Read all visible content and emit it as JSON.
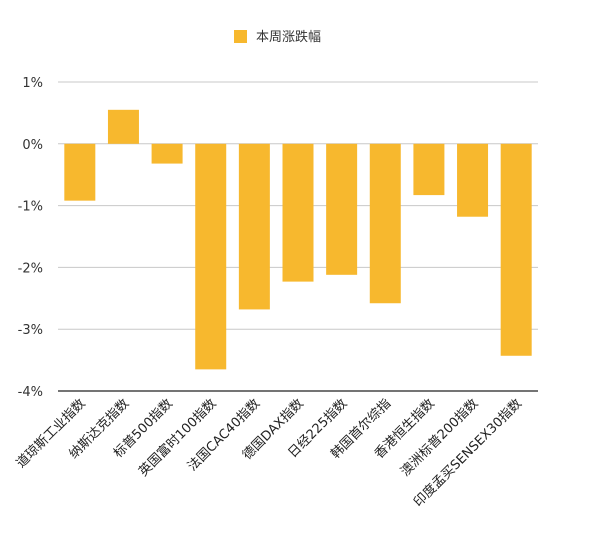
{
  "chart_data": {
    "type": "bar",
    "categories": [
      "道琼斯工业指数",
      "纳斯达克指数",
      "标普500指数",
      "英国富时100指数",
      "法国CAC40指数",
      "德国DAX指数",
      "日经225指数",
      "韩国首尔综指",
      "香港恒生指数",
      "澳洲标普200指数",
      "印度孟买SENSEX30指数"
    ],
    "series": [
      {
        "name": "本周涨跌幅",
        "values": [
          -0.92,
          0.55,
          -0.32,
          -3.65,
          -2.68,
          -2.23,
          -2.12,
          -2.58,
          -0.83,
          -1.18,
          -3.43
        ]
      }
    ],
    "ylim": [
      -4,
      1
    ],
    "yticks": [
      1,
      0,
      -1,
      -2,
      -3,
      -4
    ],
    "ytick_labels": [
      "1%",
      "0%",
      "-1%",
      "-2%",
      "-3%",
      "-4%"
    ],
    "grid": true,
    "legend_position": "top-center",
    "color": "#F7B82E"
  }
}
